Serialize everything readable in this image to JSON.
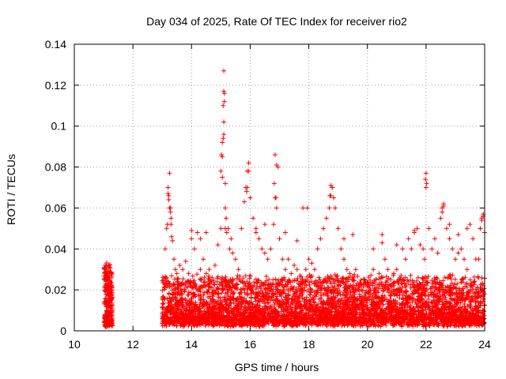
{
  "chart_data": {
    "type": "scatter",
    "title": "Day 034 of 2025, Rate Of TEC Index for receiver rio2",
    "xlabel": "GPS time / hours",
    "ylabel": "ROTI / TECUs",
    "xlim": [
      10,
      24
    ],
    "ylim": [
      0,
      0.14
    ],
    "xticks": [
      "10",
      "12",
      "14",
      "16",
      "18",
      "20",
      "22",
      "24"
    ],
    "yticks": [
      "0",
      "0.02",
      "0.04",
      "0.06",
      "0.08",
      "0.1",
      "0.12",
      "0.14"
    ],
    "grid": true,
    "marker": "+",
    "color": "#ff0000",
    "series": [
      {
        "x": [
          11.05,
          11.08,
          11.1,
          11.12,
          11.15,
          11.18,
          11.2,
          11.22,
          11.25,
          11.28,
          11.1,
          11.15,
          11.2,
          11.25,
          11.12,
          11.18,
          11.22,
          11.08,
          11.28,
          11.15,
          13.2,
          13.22,
          13.25,
          13.28,
          13.3,
          13.18,
          13.15,
          13.32,
          13.35,
          13.1,
          13.05,
          13.4,
          13.45,
          13.5,
          13.6,
          13.7,
          13.8,
          13.9,
          14.0,
          14.1,
          14.2,
          14.3,
          14.4,
          14.5,
          14.6,
          14.7,
          14.8,
          14.9,
          15.0,
          15.02,
          15.05,
          15.08,
          15.1,
          15.12,
          15.15,
          15.18,
          15.2,
          15.25,
          15.3,
          15.35,
          15.4,
          15.5,
          15.6,
          15.7,
          15.8,
          15.85,
          15.9,
          15.95,
          16.0,
          16.1,
          16.2,
          16.3,
          16.4,
          16.5,
          16.6,
          16.7,
          16.8,
          16.85,
          16.9,
          16.95,
          17.0,
          17.1,
          17.2,
          17.3,
          17.4,
          17.5,
          17.6,
          17.7,
          17.8,
          17.9,
          18.0,
          18.1,
          18.2,
          18.3,
          18.4,
          18.5,
          18.6,
          18.7,
          18.75,
          18.8,
          18.85,
          18.9,
          19.0,
          19.1,
          19.2,
          19.3,
          19.4,
          19.5,
          19.6,
          19.7,
          19.8,
          19.9,
          20.0,
          20.1,
          20.2,
          20.3,
          20.4,
          20.5,
          20.6,
          20.7,
          20.8,
          20.9,
          21.0,
          21.1,
          21.2,
          21.3,
          21.4,
          21.5,
          21.6,
          21.7,
          21.8,
          21.9,
          21.95,
          22.0,
          22.1,
          22.2,
          22.3,
          22.4,
          22.5,
          22.55,
          22.6,
          22.7,
          22.8,
          22.9,
          23.0,
          23.1,
          23.2,
          23.3,
          23.4,
          23.5,
          23.6,
          23.7,
          23.8,
          23.85,
          23.9,
          23.95,
          24.0,
          15.1,
          15.1,
          15.08,
          15.12,
          15.05,
          15.1,
          15.05,
          15.15,
          15.0,
          15.15,
          13.25,
          13.2,
          13.28,
          13.22,
          13.3,
          16.85,
          16.9,
          16.82,
          16.88,
          15.95,
          15.9,
          15.88,
          18.75,
          18.8,
          18.72,
          17.95,
          22.0,
          21.98,
          22.02,
          22.6,
          22.55,
          23.95,
          23.9,
          23.85,
          14.0,
          14.5,
          14.3,
          16.2,
          16.5,
          17.2,
          17.6,
          19.5,
          19.2,
          20.2,
          20.5,
          21.0,
          21.6,
          22.8,
          23.4,
          23.1
        ],
        "y": [
          0.032,
          0.028,
          0.03,
          0.025,
          0.022,
          0.032,
          0.018,
          0.024,
          0.02,
          0.016,
          0.01,
          0.008,
          0.006,
          0.004,
          0.012,
          0.014,
          0.005,
          0.002,
          0.009,
          0.026,
          0.067,
          0.064,
          0.06,
          0.058,
          0.055,
          0.052,
          0.05,
          0.046,
          0.044,
          0.04,
          0.025,
          0.035,
          0.03,
          0.028,
          0.032,
          0.03,
          0.034,
          0.028,
          0.045,
          0.04,
          0.048,
          0.03,
          0.035,
          0.028,
          0.03,
          0.026,
          0.032,
          0.042,
          0.05,
          0.086,
          0.092,
          0.094,
          0.102,
          0.116,
          0.06,
          0.055,
          0.048,
          0.05,
          0.04,
          0.045,
          0.038,
          0.035,
          0.03,
          0.05,
          0.063,
          0.07,
          0.07,
          0.078,
          0.065,
          0.055,
          0.048,
          0.045,
          0.04,
          0.038,
          0.035,
          0.04,
          0.052,
          0.065,
          0.06,
          0.08,
          0.045,
          0.035,
          0.03,
          0.035,
          0.028,
          0.032,
          0.03,
          0.027,
          0.06,
          0.03,
          0.035,
          0.033,
          0.03,
          0.04,
          0.045,
          0.05,
          0.055,
          0.06,
          0.066,
          0.07,
          0.065,
          0.06,
          0.05,
          0.04,
          0.035,
          0.03,
          0.028,
          0.025,
          0.03,
          0.022,
          0.02,
          0.025,
          0.022,
          0.02,
          0.03,
          0.025,
          0.028,
          0.047,
          0.035,
          0.03,
          0.025,
          0.028,
          0.03,
          0.025,
          0.04,
          0.035,
          0.045,
          0.04,
          0.048,
          0.05,
          0.042,
          0.04,
          0.035,
          0.07,
          0.05,
          0.04,
          0.045,
          0.038,
          0.055,
          0.06,
          0.061,
          0.05,
          0.045,
          0.04,
          0.035,
          0.038,
          0.04,
          0.035,
          0.03,
          0.052,
          0.045,
          0.035,
          0.035,
          0.05,
          0.055,
          0.057,
          0.048,
          0.127,
          0.117,
          0.11,
          0.112,
          0.085,
          0.096,
          0.075,
          0.072,
          0.078,
          0.05,
          0.077,
          0.07,
          0.06,
          0.066,
          0.052,
          0.086,
          0.081,
          0.072,
          0.065,
          0.082,
          0.078,
          0.068,
          0.071,
          0.07,
          0.066,
          0.06,
          0.077,
          0.074,
          0.072,
          0.062,
          0.058,
          0.056,
          0.054,
          0.05,
          0.049,
          0.048,
          0.045,
          0.05,
          0.052,
          0.048,
          0.044,
          0.047,
          0.045,
          0.04,
          0.043,
          0.042,
          0.049,
          0.052,
          0.05,
          0.047
        ]
      }
    ]
  }
}
